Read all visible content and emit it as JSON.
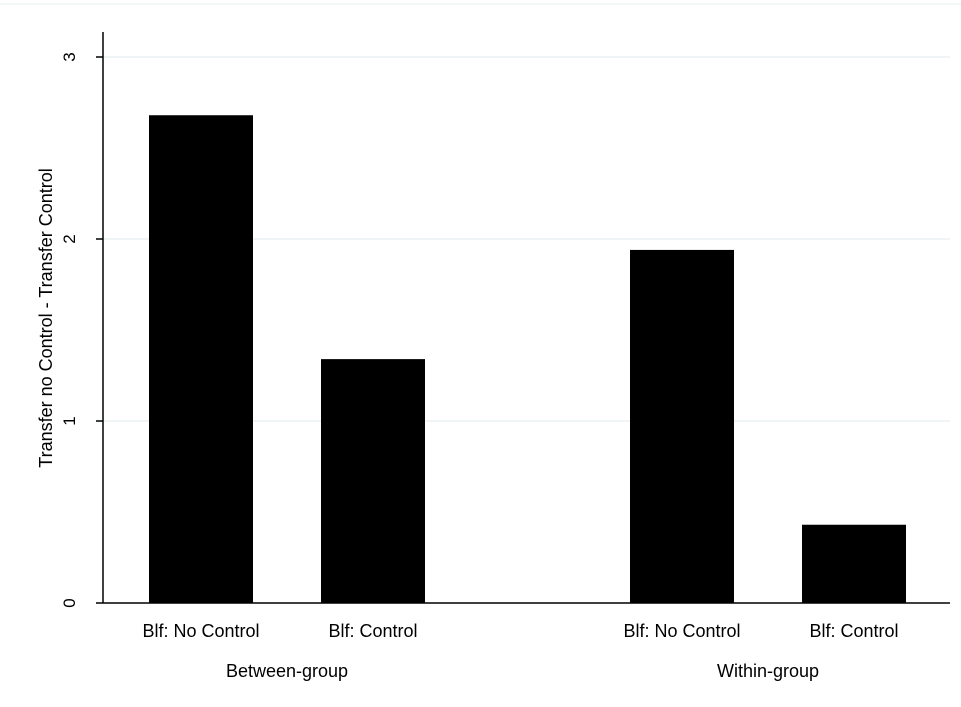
{
  "chart_data": {
    "type": "bar",
    "ylabel": "Transfer no Control - Transfer Control",
    "xlabel": "",
    "ylim": [
      0,
      3.1
    ],
    "yticks": [
      0,
      1,
      2,
      3
    ],
    "grid": true,
    "bar_color": "#000000",
    "grid_color": "#eaf2f3",
    "groups": [
      {
        "label": "Between-group",
        "bars": [
          {
            "category": "Blf: No Control",
            "value": 2.68
          },
          {
            "category": "Blf: Control",
            "value": 1.34
          }
        ]
      },
      {
        "label": "Within-group",
        "bars": [
          {
            "category": "Blf: No Control",
            "value": 1.94
          },
          {
            "category": "Blf: Control",
            "value": 0.43
          }
        ]
      }
    ]
  }
}
